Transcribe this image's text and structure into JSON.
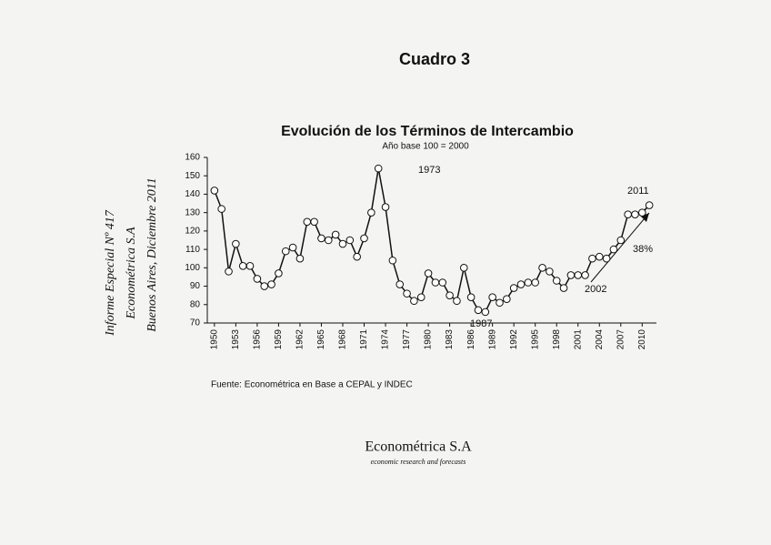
{
  "document": {
    "heading": "Cuadro 3",
    "note": [
      "Informe Especial Nº 417",
      "Econométrica S.A",
      "Buenos Aires, Diciembre 2011"
    ],
    "footer": {
      "company": "Econométrica S.A",
      "tagline": "economic research and forecasts"
    }
  },
  "chart_data": {
    "type": "line",
    "title": "Evolución de los Términos de Intercambio",
    "subtitle": "Año base 100 = 2000",
    "source": "Fuente: Econométrica en Base a CEPAL y INDEC",
    "annotations": [
      "1973",
      "1987",
      "2002",
      "2011",
      "38%"
    ],
    "x": [
      1950,
      1951,
      1952,
      1953,
      1954,
      1955,
      1956,
      1957,
      1958,
      1959,
      1960,
      1961,
      1962,
      1963,
      1964,
      1965,
      1966,
      1967,
      1968,
      1969,
      1970,
      1971,
      1972,
      1973,
      1974,
      1975,
      1976,
      1977,
      1978,
      1979,
      1980,
      1981,
      1982,
      1983,
      1984,
      1985,
      1986,
      1987,
      1988,
      1989,
      1990,
      1991,
      1992,
      1993,
      1994,
      1995,
      1996,
      1997,
      1998,
      1999,
      2000,
      2001,
      2002,
      2003,
      2004,
      2005,
      2006,
      2007,
      2008,
      2009,
      2010,
      2011
    ],
    "values": [
      142,
      132,
      98,
      113,
      101,
      101,
      94,
      90,
      91,
      97,
      109,
      111,
      105,
      125,
      125,
      116,
      115,
      118,
      113,
      115,
      106,
      116,
      130,
      154,
      133,
      104,
      91,
      86,
      82,
      84,
      97,
      92,
      92,
      85,
      82,
      100,
      84,
      77,
      76,
      84,
      81,
      83,
      89,
      91,
      92,
      92,
      100,
      98,
      93,
      89,
      96,
      96,
      96,
      105,
      106,
      105,
      110,
      115,
      129,
      129,
      130,
      134
    ],
    "color": "#111111",
    "xlim": [
      1949,
      2012
    ],
    "xticks": [
      1950,
      1953,
      1956,
      1959,
      1962,
      1965,
      1968,
      1971,
      1974,
      1977,
      1980,
      1983,
      1986,
      1989,
      1992,
      1995,
      1998,
      2001,
      2004,
      2007,
      2010
    ],
    "ylim": [
      70,
      160
    ],
    "yticks": [
      70,
      80,
      90,
      100,
      110,
      120,
      130,
      140,
      150,
      160
    ]
  }
}
